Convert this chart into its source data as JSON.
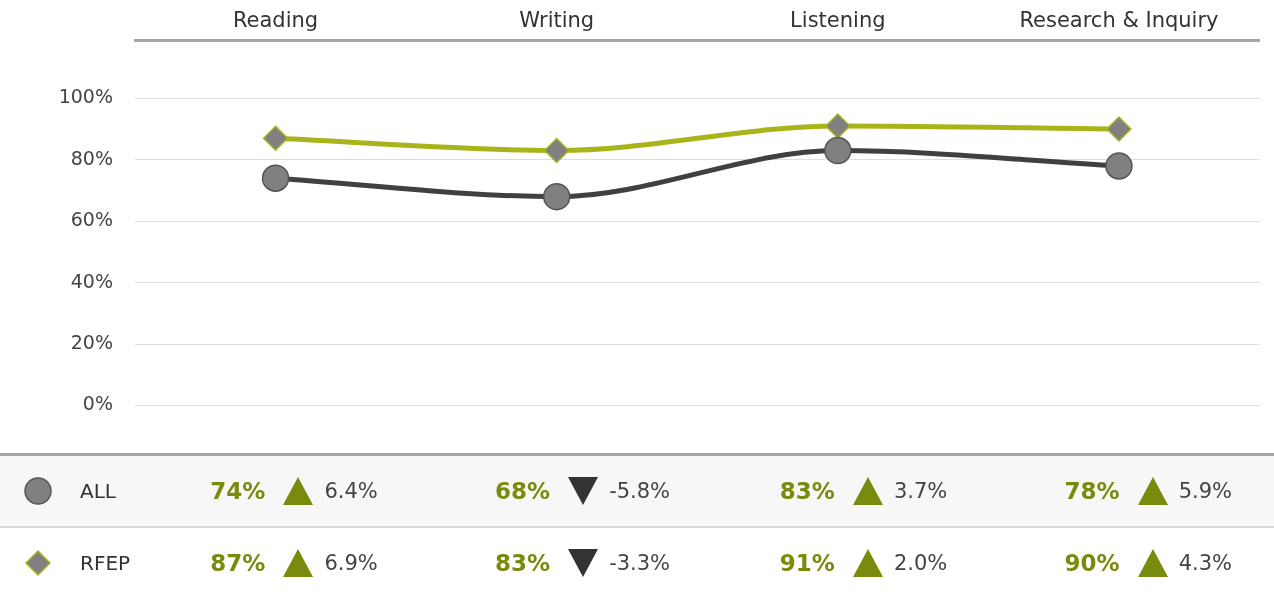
{
  "chart_data": {
    "type": "line",
    "categories": [
      "Reading",
      "Writing",
      "Listening",
      "Research & Inquiry"
    ],
    "series": [
      {
        "name": "ALL",
        "color": "#404040",
        "marker": "circle",
        "values": [
          74,
          68,
          83,
          78
        ],
        "value_labels": [
          "74%",
          "68%",
          "83%",
          "78%"
        ]
      },
      {
        "name": "RFEP",
        "color": "#a8b51a",
        "marker": "diamond",
        "values": [
          87,
          83,
          91,
          90
        ],
        "value_labels": [
          "87%",
          "83%",
          "91%",
          "90%"
        ]
      }
    ],
    "ylim": [
      -16,
      119
    ],
    "yticks": [
      {
        "value": 0,
        "label": "0%"
      },
      {
        "value": 20,
        "label": "20%"
      },
      {
        "value": 40,
        "label": "40%"
      },
      {
        "value": 60,
        "label": "60%"
      },
      {
        "value": 80,
        "label": "80%"
      },
      {
        "value": 100,
        "label": "100%"
      }
    ],
    "grid": "y",
    "legend": "bottom",
    "annotations": [
      "6.4%",
      "-5.8%",
      "3.7%",
      "5.9%",
      "6.9%",
      "-3.3%",
      "2.0%",
      "4.3%"
    ]
  }
}
